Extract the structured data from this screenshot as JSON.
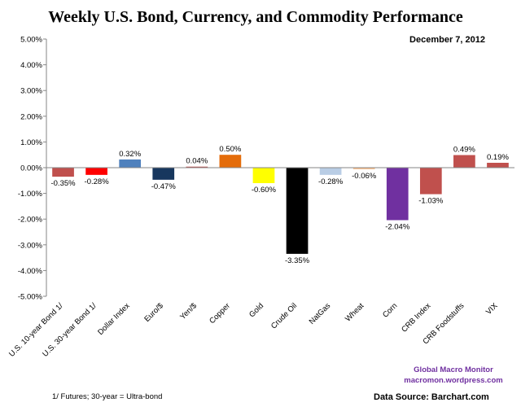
{
  "chart_data": {
    "type": "bar",
    "title": "Weekly U.S. Bond, Currency, and Commodity Performance",
    "subtitle": "December 7, 2012",
    "xlabel": "",
    "ylabel": "",
    "ylim": [
      -5,
      5
    ],
    "ytick_step": 1,
    "ytick_labels": [
      "5.00%",
      "4.00%",
      "3.00%",
      "2.00%",
      "1.00%",
      "0.00%",
      "-1.00%",
      "-2.00%",
      "-3.00%",
      "-4.00%",
      "-5.00%"
    ],
    "grid": false,
    "legend": "none",
    "categories": [
      "U.S. 10-year Bond 1/",
      "U.S. 30-year Bond 1/",
      "Dollar Index",
      "Euro/$",
      "Yen/$",
      "Copper",
      "Gold",
      "Crude Oil",
      "NatGas",
      "Wheat",
      "Corn",
      "CRB Index",
      "CRB Foodstuffs",
      "VIX"
    ],
    "values": [
      -0.35,
      -0.28,
      0.32,
      -0.47,
      0.04,
      0.5,
      -0.6,
      -3.35,
      -0.28,
      -0.06,
      -2.04,
      -1.03,
      0.49,
      0.19
    ],
    "data_labels": [
      "-0.35%",
      "-0.28%",
      "0.32%",
      "-0.47%",
      "0.04%",
      "0.50%",
      "-0.60%",
      "-3.35%",
      "-0.28%",
      "-0.06%",
      "-2.04%",
      "-1.03%",
      "0.49%",
      "0.19%"
    ],
    "colors": [
      "#c0504d",
      "#ff0000",
      "#4f81bd",
      "#17375e",
      "#c0504d",
      "#e46c0a",
      "#ffff00",
      "#000000",
      "#b9cde5",
      "#fac090",
      "#7030a0",
      "#c0504d",
      "#c0504d",
      "#c0504d"
    ]
  },
  "credits": {
    "line1": "Global Macro Monitor",
    "line2": "macromon.wordpress.com"
  },
  "footnote": "1/ Futures; 30-year = Ultra-bond",
  "source": "Data Source:  Barchart.com"
}
